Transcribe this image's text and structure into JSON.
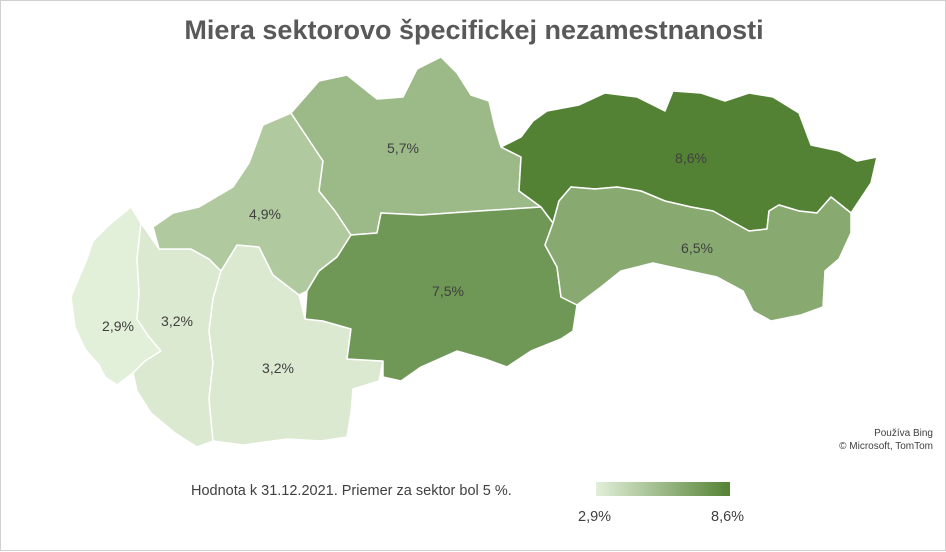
{
  "title": "Miera sektorovo špecifickej nezamestnanosti",
  "regions": [
    {
      "id": "bratislava",
      "label": "2,9%",
      "value": 2.9
    },
    {
      "id": "trnava",
      "label": "3,2%",
      "value": 3.2
    },
    {
      "id": "nitra",
      "label": "3,2%",
      "value": 3.2
    },
    {
      "id": "trencin",
      "label": "4,9%",
      "value": 4.9
    },
    {
      "id": "zilina",
      "label": "5,7%",
      "value": 5.7
    },
    {
      "id": "banska-bystrica",
      "label": "7,5%",
      "value": 7.5
    },
    {
      "id": "presov",
      "label": "8,6%",
      "value": 8.6
    },
    {
      "id": "kosice",
      "label": "6,5%",
      "value": 6.5
    }
  ],
  "scale": {
    "min": 2.9,
    "max": 8.6,
    "color_min": "#e2efd9",
    "color_max": "#548235"
  },
  "legend": {
    "caption": "Hodnota k 31.12.2021. Priemer za sektor bol 5 %.",
    "min_label": "2,9%",
    "max_label": "8,6%"
  },
  "attribution": {
    "line1": "Používa Bing",
    "line2": "© Microsoft, TomTom"
  }
}
